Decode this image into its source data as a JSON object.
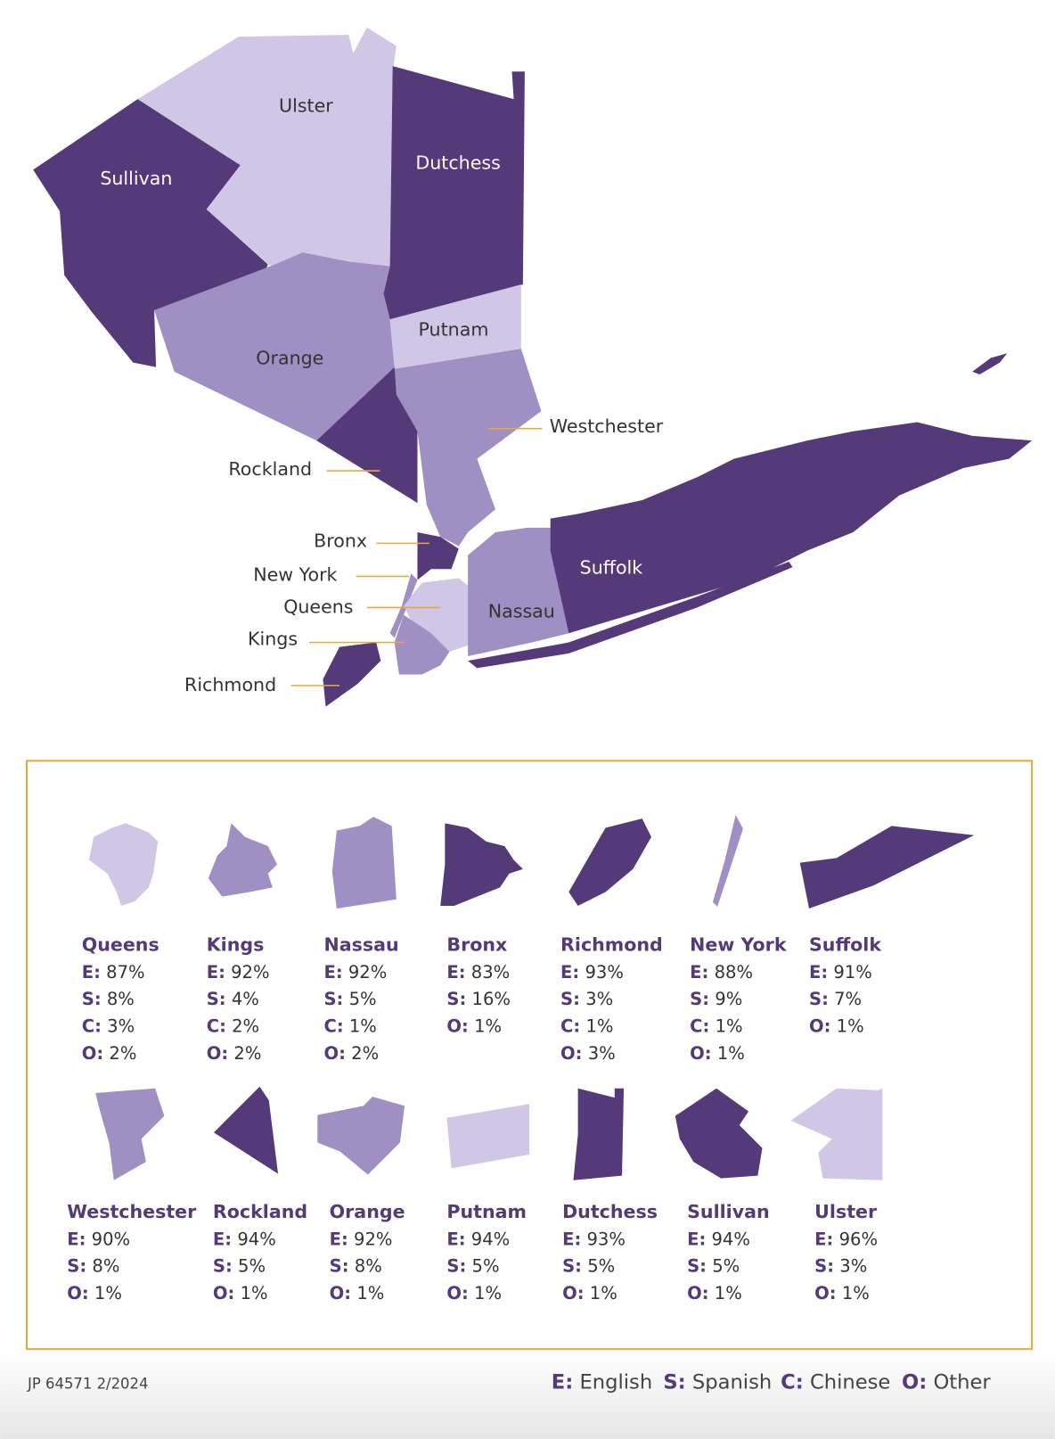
{
  "map": {
    "labels": [
      "Ulster",
      "Dutchess",
      "Sullivan",
      "Putnam",
      "Orange",
      "Westchester",
      "Rockland",
      "Bronx",
      "New York",
      "Queens",
      "Kings",
      "Richmond",
      "Suffolk",
      "Nassau"
    ]
  },
  "cards": [
    {
      "name": "Queens",
      "stats": [
        {
          "code": "E:",
          "value": "87%"
        },
        {
          "code": "S:",
          "value": "8%"
        },
        {
          "code": "C:",
          "value": "3%"
        },
        {
          "code": "O:",
          "value": "2%"
        }
      ]
    },
    {
      "name": "Kings",
      "stats": [
        {
          "code": "E:",
          "value": "92%"
        },
        {
          "code": "S:",
          "value": "4%"
        },
        {
          "code": "C:",
          "value": "2%"
        },
        {
          "code": "O:",
          "value": "2%"
        }
      ]
    },
    {
      "name": "Nassau",
      "stats": [
        {
          "code": "E:",
          "value": "92%"
        },
        {
          "code": "S:",
          "value": "5%"
        },
        {
          "code": "C:",
          "value": "1%"
        },
        {
          "code": "O:",
          "value": "2%"
        }
      ]
    },
    {
      "name": "Bronx",
      "stats": [
        {
          "code": "E:",
          "value": "83%"
        },
        {
          "code": "S:",
          "value": "16%"
        },
        {
          "code": "O:",
          "value": "1%"
        }
      ]
    },
    {
      "name": "Richmond",
      "stats": [
        {
          "code": "E:",
          "value": "93%"
        },
        {
          "code": "S:",
          "value": "3%"
        },
        {
          "code": "C:",
          "value": "1%"
        },
        {
          "code": "O:",
          "value": "3%"
        }
      ]
    },
    {
      "name": "New York",
      "stats": [
        {
          "code": "E:",
          "value": "88%"
        },
        {
          "code": "S:",
          "value": "9%"
        },
        {
          "code": "C:",
          "value": "1%"
        },
        {
          "code": "O:",
          "value": "1%"
        }
      ]
    },
    {
      "name": "Suffolk",
      "stats": [
        {
          "code": "E:",
          "value": "91%"
        },
        {
          "code": "S:",
          "value": "7%"
        },
        {
          "code": "O:",
          "value": "1%"
        }
      ]
    },
    {
      "name": "Westchester",
      "stats": [
        {
          "code": "E:",
          "value": "90%"
        },
        {
          "code": "S:",
          "value": "8%"
        },
        {
          "code": "O:",
          "value": "1%"
        }
      ]
    },
    {
      "name": "Rockland",
      "stats": [
        {
          "code": "E:",
          "value": "94%"
        },
        {
          "code": "S:",
          "value": "5%"
        },
        {
          "code": "O:",
          "value": "1%"
        }
      ]
    },
    {
      "name": "Orange",
      "stats": [
        {
          "code": "E:",
          "value": "92%"
        },
        {
          "code": "S:",
          "value": "8%"
        },
        {
          "code": "O:",
          "value": "1%"
        }
      ]
    },
    {
      "name": "Putnam",
      "stats": [
        {
          "code": "E:",
          "value": "94%"
        },
        {
          "code": "S:",
          "value": "5%"
        },
        {
          "code": "O:",
          "value": "1%"
        }
      ]
    },
    {
      "name": "Dutchess",
      "stats": [
        {
          "code": "E:",
          "value": "93%"
        },
        {
          "code": "S:",
          "value": "5%"
        },
        {
          "code": "O:",
          "value": "1%"
        }
      ]
    },
    {
      "name": "Sullivan",
      "stats": [
        {
          "code": "E:",
          "value": "94%"
        },
        {
          "code": "S:",
          "value": "5%"
        },
        {
          "code": "O:",
          "value": "1%"
        }
      ]
    },
    {
      "name": "Ulster",
      "stats": [
        {
          "code": "E:",
          "value": "96%"
        },
        {
          "code": "S:",
          "value": "3%"
        },
        {
          "code": "O:",
          "value": "1%"
        }
      ]
    }
  ],
  "legend": [
    {
      "code": "E:",
      "label": "English"
    },
    {
      "code": "S:",
      "label": "Spanish"
    },
    {
      "code": "C:",
      "label": "Chinese"
    },
    {
      "code": "O:",
      "label": "Other"
    }
  ],
  "footer": "JP 64571 2/2024"
}
